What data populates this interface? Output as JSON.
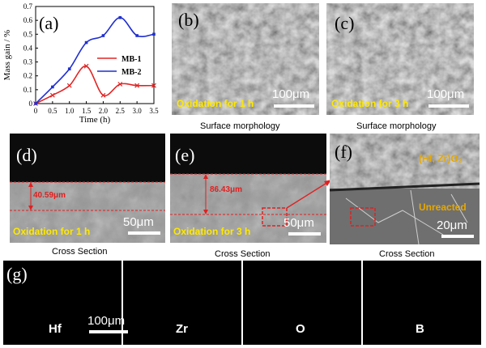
{
  "chart_data": {
    "type": "line",
    "panel_label": "(a)",
    "xlabel": "Time (h)",
    "ylabel": "Mass gain / %",
    "x": [
      0,
      0.5,
      1,
      1.5,
      2,
      2.5,
      3,
      3.5
    ],
    "xlim": [
      0,
      3.5
    ],
    "ylim": [
      0,
      0.7
    ],
    "xticks": [
      "0",
      "0.5",
      "1.0",
      "1.5",
      "2.0",
      "2.5",
      "3.0",
      "3.5"
    ],
    "yticks": [
      "0",
      "0.1",
      "0.2",
      "0.3",
      "0.4",
      "0.5",
      "0.6",
      "0.7"
    ],
    "legend_placement": "middle-right",
    "series": [
      {
        "name": "MB-1",
        "color": "#e02525",
        "values": [
          0,
          0.06,
          0.13,
          0.27,
          0.06,
          0.14,
          0.13,
          0.13
        ]
      },
      {
        "name": "MB-2",
        "color": "#1f2fd0",
        "values": [
          0,
          0.12,
          0.25,
          0.44,
          0.49,
          0.62,
          0.49,
          0.5
        ]
      }
    ]
  },
  "panels": {
    "b": {
      "label": "(b)",
      "text": "Oxidation for 1 h",
      "scale": "100μm",
      "caption": "Surface morphology"
    },
    "c": {
      "label": "(c)",
      "text": "Oxidation for 3 h",
      "scale": "100μm",
      "caption": "Surface morphology"
    },
    "d": {
      "label": "(d)",
      "text": "Oxidation for 1 h",
      "scale": "50μm",
      "thickness": "40.59μm",
      "caption": "Cross Section"
    },
    "e": {
      "label": "(e)",
      "text": "Oxidation for 3 h",
      "scale": "50μm",
      "thickness": "86.43μm",
      "caption": "Cross Section"
    },
    "f": {
      "label": "(f)",
      "oxide": "(Hf, Zr)O₂",
      "unreacted": "Unreacted",
      "scale": "20μm",
      "caption": "Cross Section"
    },
    "g": {
      "label": "(g)",
      "scale": "100μm",
      "maps": [
        {
          "element": "Hf",
          "color": "#2bd42b"
        },
        {
          "element": "Zr",
          "color": "#d52bd5"
        },
        {
          "element": "O",
          "color": "#e02222"
        },
        {
          "element": "B",
          "color": "#e8e82b"
        }
      ]
    }
  }
}
